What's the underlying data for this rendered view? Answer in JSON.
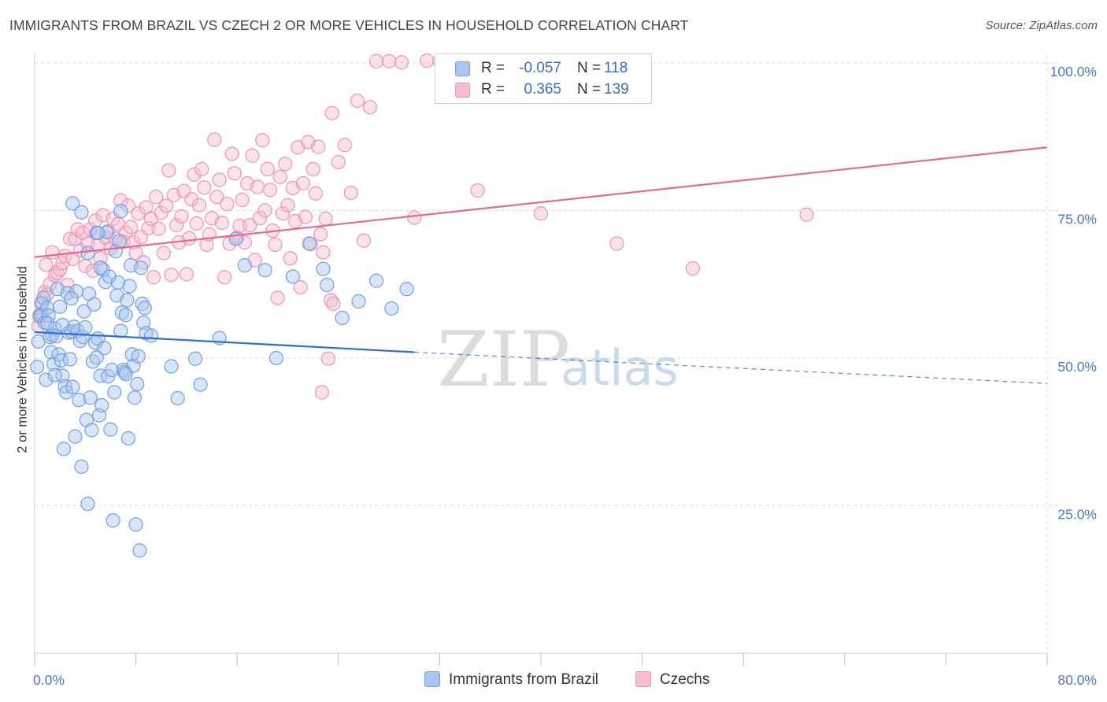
{
  "title": "IMMIGRANTS FROM BRAZIL VS CZECH 2 OR MORE VEHICLES IN HOUSEHOLD CORRELATION CHART",
  "source": "Source: ZipAtlas.com",
  "watermark": {
    "zip": "ZIP",
    "atlas": "atlas"
  },
  "colors": {
    "blue_fill": "#a8c6ef",
    "blue_stroke": "#6f9fe0",
    "blue_line": "#2e6fcf",
    "pink_fill": "#f6bcd0",
    "pink_stroke": "#ec93b1",
    "pink_line": "#e46a96",
    "grid": "#dddddd",
    "tick_text": "#4a78c8"
  },
  "legend": {
    "rows": [
      {
        "r_label": "R =",
        "r_value": "-0.057",
        "n_label": "N =",
        "n_value": "118"
      },
      {
        "r_label": "R =",
        "r_value": "0.365",
        "n_label": "N =",
        "n_value": "139"
      }
    ],
    "bottom": [
      "Immigrants from Brazil",
      "Czechs"
    ]
  },
  "chart_data": {
    "type": "scatter",
    "title": "IMMIGRANTS FROM BRAZIL VS CZECH 2 OR MORE VEHICLES IN HOUSEHOLD CORRELATION CHART",
    "xlabel": "",
    "ylabel": "2 or more Vehicles in Household",
    "xlim": [
      0,
      80
    ],
    "ylim": [
      0,
      100
    ],
    "x_tick_labels": [
      "0.0%",
      "80.0%"
    ],
    "y_ticks": [
      25,
      50,
      75,
      100
    ],
    "y_tick_labels": [
      "25.0%",
      "50.0%",
      "75.0%",
      "100.0%"
    ],
    "grid": true,
    "legend_position": "top-center",
    "series": [
      {
        "name": "Immigrants from Brazil",
        "R": -0.057,
        "N": 118,
        "trend": {
          "x": [
            0,
            30
          ],
          "y": [
            54.4,
            51.0
          ],
          "dashed_to": [
            80,
            45.7
          ]
        },
        "points": [
          [
            0.2,
            48.5
          ],
          [
            0.3,
            52.8
          ],
          [
            0.4,
            57.0
          ],
          [
            0.5,
            57.3
          ],
          [
            0.6,
            59.3
          ],
          [
            0.7,
            60.2
          ],
          [
            0.8,
            56.0
          ],
          [
            0.9,
            46.3
          ],
          [
            1.0,
            58.5
          ],
          [
            1.1,
            57.2
          ],
          [
            1.2,
            53.6
          ],
          [
            1.3,
            51.0
          ],
          [
            1.4,
            53.9
          ],
          [
            1.5,
            49.0
          ],
          [
            1.6,
            55.0
          ],
          [
            1.7,
            53.7
          ],
          [
            1.8,
            61.7
          ],
          [
            1.9,
            50.6
          ],
          [
            2.0,
            58.7
          ],
          [
            2.1,
            49.6
          ],
          [
            2.2,
            47.0
          ],
          [
            2.3,
            34.6
          ],
          [
            2.4,
            45.2
          ],
          [
            2.5,
            44.2
          ],
          [
            2.6,
            61.0
          ],
          [
            2.7,
            54.3
          ],
          [
            2.8,
            49.8
          ],
          [
            2.9,
            54.5
          ],
          [
            3.0,
            45.1
          ],
          [
            3.1,
            55.3
          ],
          [
            3.2,
            36.7
          ],
          [
            3.3,
            61.3
          ],
          [
            3.4,
            54.6
          ],
          [
            3.5,
            42.9
          ],
          [
            3.6,
            52.9
          ],
          [
            3.7,
            31.6
          ],
          [
            3.8,
            53.6
          ],
          [
            3.9,
            57.9
          ],
          [
            4.0,
            55.2
          ],
          [
            4.1,
            39.5
          ],
          [
            4.2,
            67.8
          ],
          [
            4.3,
            60.9
          ],
          [
            4.4,
            43.3
          ],
          [
            4.5,
            37.8
          ],
          [
            4.6,
            49.4
          ],
          [
            4.7,
            59.1
          ],
          [
            4.8,
            52.6
          ],
          [
            4.9,
            71.2
          ],
          [
            5.0,
            53.3
          ],
          [
            5.1,
            40.3
          ],
          [
            5.2,
            47.0
          ],
          [
            5.3,
            42.0
          ],
          [
            5.4,
            65.0
          ],
          [
            5.5,
            51.7
          ],
          [
            5.6,
            62.9
          ],
          [
            5.7,
            71.3
          ],
          [
            5.8,
            46.9
          ],
          [
            5.9,
            63.8
          ],
          [
            6.0,
            37.9
          ],
          [
            6.1,
            48.0
          ],
          [
            6.2,
            22.5
          ],
          [
            6.3,
            44.2
          ],
          [
            6.4,
            68.1
          ],
          [
            6.5,
            60.6
          ],
          [
            6.6,
            62.8
          ],
          [
            6.7,
            69.8
          ],
          [
            6.8,
            54.6
          ],
          [
            6.9,
            57.7
          ],
          [
            7.0,
            48.0
          ],
          [
            7.1,
            47.6
          ],
          [
            7.2,
            57.3
          ],
          [
            7.3,
            59.8
          ],
          [
            7.4,
            36.4
          ],
          [
            7.5,
            62.2
          ],
          [
            7.6,
            65.7
          ],
          [
            7.7,
            50.6
          ],
          [
            7.8,
            48.7
          ],
          [
            7.9,
            43.3
          ],
          [
            8.0,
            21.8
          ],
          [
            8.1,
            45.6
          ],
          [
            8.2,
            50.3
          ],
          [
            8.3,
            17.4
          ],
          [
            8.4,
            65.3
          ],
          [
            8.5,
            59.2
          ],
          [
            8.6,
            56.0
          ],
          [
            8.7,
            58.5
          ],
          [
            2.2,
            55.6
          ],
          [
            2.9,
            60.1
          ],
          [
            3.0,
            76.2
          ],
          [
            3.7,
            74.7
          ],
          [
            4.2,
            25.3
          ],
          [
            4.9,
            50.1
          ],
          [
            5.0,
            71.2
          ],
          [
            5.2,
            65.3
          ],
          [
            6.8,
            74.9
          ],
          [
            7.2,
            47.3
          ],
          [
            8.8,
            54.2
          ],
          [
            9.2,
            53.8
          ],
          [
            10.8,
            48.6
          ],
          [
            11.3,
            43.2
          ],
          [
            12.7,
            49.9
          ],
          [
            13.1,
            45.5
          ],
          [
            14.6,
            53.4
          ],
          [
            15.9,
            70.2
          ],
          [
            16.6,
            65.7
          ],
          [
            18.2,
            64.9
          ],
          [
            19.1,
            50.0
          ],
          [
            20.4,
            63.8
          ],
          [
            21.7,
            69.4
          ],
          [
            22.8,
            65.1
          ],
          [
            23.1,
            62.4
          ],
          [
            24.3,
            56.8
          ],
          [
            25.6,
            59.6
          ],
          [
            27.0,
            63.1
          ],
          [
            28.2,
            58.4
          ],
          [
            29.4,
            61.7
          ],
          [
            1.0,
            55.9
          ],
          [
            1.6,
            47.1
          ]
        ]
      },
      {
        "name": "Czechs",
        "R": 0.365,
        "N": 139,
        "trend": {
          "x": [
            0,
            80
          ],
          "y": [
            67.1,
            85.7
          ]
        },
        "points": [
          [
            0.3,
            55.4
          ],
          [
            0.4,
            57.3
          ],
          [
            0.5,
            59.4
          ],
          [
            0.6,
            57.6
          ],
          [
            0.8,
            61.2
          ],
          [
            0.9,
            65.8
          ],
          [
            1.0,
            60.8
          ],
          [
            1.2,
            62.5
          ],
          [
            1.4,
            67.9
          ],
          [
            1.6,
            64.0
          ],
          [
            1.8,
            64.4
          ],
          [
            2.0,
            65.0
          ],
          [
            2.2,
            66.1
          ],
          [
            2.4,
            67.3
          ],
          [
            2.6,
            62.4
          ],
          [
            2.8,
            70.2
          ],
          [
            3.0,
            66.8
          ],
          [
            3.2,
            70.2
          ],
          [
            3.4,
            71.8
          ],
          [
            3.6,
            68.2
          ],
          [
            3.8,
            71.2
          ],
          [
            4.0,
            65.6
          ],
          [
            4.2,
            69.4
          ],
          [
            4.4,
            71.8
          ],
          [
            4.6,
            64.8
          ],
          [
            4.8,
            73.3
          ],
          [
            5.0,
            69.1
          ],
          [
            5.2,
            66.9
          ],
          [
            5.4,
            74.2
          ],
          [
            5.6,
            70.4
          ],
          [
            5.8,
            71.5
          ],
          [
            6.0,
            68.6
          ],
          [
            6.2,
            73.6
          ],
          [
            6.4,
            70.2
          ],
          [
            6.6,
            72.7
          ],
          [
            6.8,
            76.7
          ],
          [
            7.0,
            69.7
          ],
          [
            7.2,
            71.3
          ],
          [
            7.4,
            75.8
          ],
          [
            7.6,
            72.2
          ],
          [
            7.8,
            69.6
          ],
          [
            8.0,
            67.8
          ],
          [
            8.2,
            74.5
          ],
          [
            8.4,
            70.5
          ],
          [
            8.6,
            66.2
          ],
          [
            8.8,
            75.5
          ],
          [
            9.0,
            72.0
          ],
          [
            9.2,
            73.6
          ],
          [
            9.4,
            63.7
          ],
          [
            9.6,
            77.3
          ],
          [
            9.8,
            71.9
          ],
          [
            10.0,
            74.6
          ],
          [
            10.2,
            67.8
          ],
          [
            10.4,
            75.8
          ],
          [
            10.6,
            81.8
          ],
          [
            10.8,
            64.1
          ],
          [
            11.0,
            77.6
          ],
          [
            11.2,
            72.5
          ],
          [
            11.4,
            69.6
          ],
          [
            11.6,
            74.0
          ],
          [
            11.8,
            78.3
          ],
          [
            12.0,
            64.2
          ],
          [
            12.2,
            70.3
          ],
          [
            12.4,
            76.9
          ],
          [
            12.6,
            81.1
          ],
          [
            12.8,
            72.8
          ],
          [
            13.0,
            75.9
          ],
          [
            13.2,
            82.0
          ],
          [
            13.4,
            78.9
          ],
          [
            13.6,
            69.2
          ],
          [
            13.8,
            71.0
          ],
          [
            14.0,
            73.7
          ],
          [
            14.2,
            87.0
          ],
          [
            14.4,
            77.3
          ],
          [
            14.6,
            80.2
          ],
          [
            14.8,
            72.9
          ],
          [
            15.0,
            63.7
          ],
          [
            15.2,
            76.1
          ],
          [
            15.4,
            69.4
          ],
          [
            15.6,
            84.6
          ],
          [
            15.8,
            81.3
          ],
          [
            16.0,
            70.4
          ],
          [
            16.2,
            72.4
          ],
          [
            16.4,
            76.8
          ],
          [
            16.6,
            69.6
          ],
          [
            16.8,
            79.6
          ],
          [
            17.0,
            72.5
          ],
          [
            17.2,
            84.3
          ],
          [
            17.4,
            66.6
          ],
          [
            17.6,
            79.0
          ],
          [
            17.8,
            73.7
          ],
          [
            18.0,
            86.9
          ],
          [
            18.2,
            75.0
          ],
          [
            18.4,
            82.0
          ],
          [
            18.6,
            78.5
          ],
          [
            18.8,
            71.6
          ],
          [
            19.0,
            69.2
          ],
          [
            19.2,
            60.2
          ],
          [
            19.4,
            80.7
          ],
          [
            19.6,
            74.5
          ],
          [
            19.8,
            82.9
          ],
          [
            20.0,
            75.9
          ],
          [
            20.2,
            66.9
          ],
          [
            20.4,
            78.8
          ],
          [
            20.6,
            73.2
          ],
          [
            20.8,
            85.7
          ],
          [
            21.0,
            62.0
          ],
          [
            21.2,
            79.6
          ],
          [
            21.4,
            73.9
          ],
          [
            21.6,
            86.6
          ],
          [
            21.8,
            69.3
          ],
          [
            22.0,
            82.0
          ],
          [
            22.2,
            77.9
          ],
          [
            22.4,
            85.8
          ],
          [
            22.6,
            71.0
          ],
          [
            22.8,
            67.9
          ],
          [
            23.0,
            73.6
          ],
          [
            23.2,
            49.9
          ],
          [
            23.4,
            59.8
          ],
          [
            23.6,
            59.2
          ],
          [
            24.0,
            83.2
          ],
          [
            25.0,
            78.0
          ],
          [
            26.0,
            69.9
          ],
          [
            27.0,
            100.3
          ],
          [
            29.0,
            100.1
          ],
          [
            31.0,
            100.4
          ],
          [
            32.0,
            100.3
          ],
          [
            28.0,
            100.3
          ],
          [
            26.5,
            92.5
          ],
          [
            25.5,
            93.6
          ],
          [
            24.5,
            86.1
          ],
          [
            23.5,
            91.5
          ],
          [
            22.7,
            44.2
          ],
          [
            30.0,
            73.8
          ],
          [
            35.0,
            78.4
          ],
          [
            40.0,
            74.5
          ],
          [
            46.0,
            69.4
          ],
          [
            52.0,
            65.2
          ],
          [
            61.0,
            74.3
          ]
        ]
      }
    ]
  }
}
